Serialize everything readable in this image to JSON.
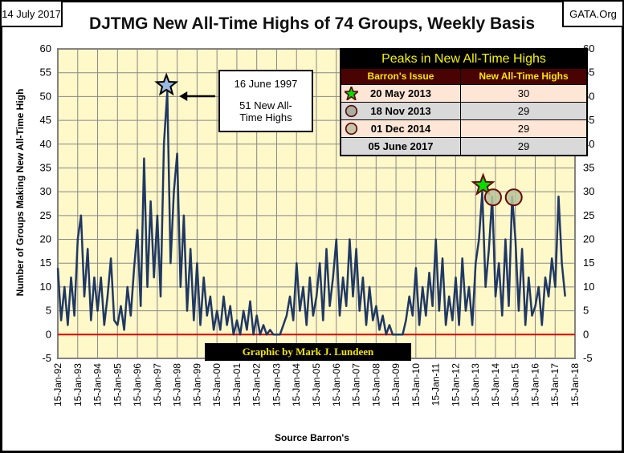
{
  "header": {
    "date": "14 July 2017",
    "source_site": "GATA.Org"
  },
  "chart_data": {
    "type": "line",
    "title": "DJTMG New All-Time Highs of 74 Groups, Weekly Basis",
    "xlabel": "Source Barron's",
    "ylabel": "Number of Groups Making  New All-Time High",
    "ylim": [
      -5,
      60
    ],
    "yticks": [
      -5,
      0,
      5,
      10,
      15,
      20,
      25,
      30,
      35,
      40,
      45,
      50,
      55,
      60
    ],
    "xlim": [
      1992,
      2018
    ],
    "xtick_labels": [
      "15-Jan-92",
      "15-Jan-93",
      "15-Jan-94",
      "15-Jan-95",
      "15-Jan-96",
      "15-Jan-97",
      "15-Jan-98",
      "15-Jan-99",
      "15-Jan-00",
      "15-Jan-01",
      "15-Jan-02",
      "15-Jan-03",
      "15-Jan-04",
      "15-Jan-05",
      "15-Jan-06",
      "15-Jan-07",
      "15-Jan-08",
      "15-Jan-09",
      "15-Jan-10",
      "15-Jan-11",
      "15-Jan-12",
      "15-Jan-13",
      "15-Jan-14",
      "15-Jan-15",
      "15-Jan-16",
      "15-Jan-17",
      "15-Jan-18"
    ],
    "grid": true,
    "series_color": "#1f3864",
    "zero_line_color": "#e00000",
    "plot_background": "#fff8c8",
    "series": [
      {
        "x_start": 1992.0,
        "x_step": 0.1667,
        "values": [
          14,
          3,
          10,
          2,
          12,
          4,
          20,
          25,
          8,
          18,
          3,
          12,
          5,
          12,
          2,
          8,
          16,
          3,
          2,
          6,
          1,
          10,
          4,
          14,
          22,
          6,
          37,
          10,
          28,
          12,
          25,
          8,
          40,
          51,
          15,
          30,
          38,
          10,
          25,
          5,
          18,
          3,
          15,
          2,
          12,
          4,
          8,
          1,
          5,
          1,
          8,
          2,
          6,
          0,
          3,
          0,
          5,
          1,
          7,
          0,
          4,
          0,
          2,
          0,
          1,
          0,
          0,
          0,
          2,
          4,
          8,
          3,
          15,
          5,
          10,
          2,
          12,
          4,
          8,
          15,
          3,
          18,
          6,
          12,
          20,
          4,
          12,
          6,
          20,
          8,
          18,
          5,
          12,
          2,
          10,
          3,
          6,
          1,
          4,
          0,
          2,
          0,
          0,
          0,
          0,
          3,
          8,
          4,
          14,
          2,
          10,
          4,
          13,
          6,
          20,
          5,
          16,
          2,
          8,
          3,
          12,
          2,
          16,
          5,
          10,
          2,
          15,
          20,
          30,
          10,
          18,
          29,
          8,
          15,
          4,
          20,
          6,
          29,
          20,
          5,
          18,
          2,
          12,
          4,
          6,
          10,
          2,
          12,
          8,
          16,
          10,
          29,
          15,
          8
        ]
      }
    ],
    "annotations": [
      {
        "label_line1": "16 June 1997",
        "label_line2": "51 New All-Time Highs",
        "x": 1997.46,
        "y": 51,
        "marker": "star",
        "color": "#9ab8e0"
      },
      {
        "x": 2013.38,
        "y": 30,
        "marker": "star",
        "color": "#00e000"
      },
      {
        "x": 2013.88,
        "y": 29,
        "marker": "circle",
        "color": "#b8c49a"
      },
      {
        "x": 2014.92,
        "y": 29,
        "marker": "circle",
        "color": "#b8c49a"
      }
    ]
  },
  "table": {
    "title": "Peaks in New All-Time Highs",
    "col1": "Barron's Issue",
    "col2": "New All-Time Highs",
    "rows": [
      {
        "issue": "20 May 2013",
        "highs": "30",
        "marker": "star-icon"
      },
      {
        "issue": "18 Nov 2013",
        "highs": "29",
        "marker": "circle-icon"
      },
      {
        "issue": "01 Dec 2014",
        "highs": "29",
        "marker": "circle-icon"
      },
      {
        "issue": "05 June 2017",
        "highs": "29",
        "marker": ""
      }
    ]
  },
  "credit": "Graphic by Mark J. Lundeen"
}
